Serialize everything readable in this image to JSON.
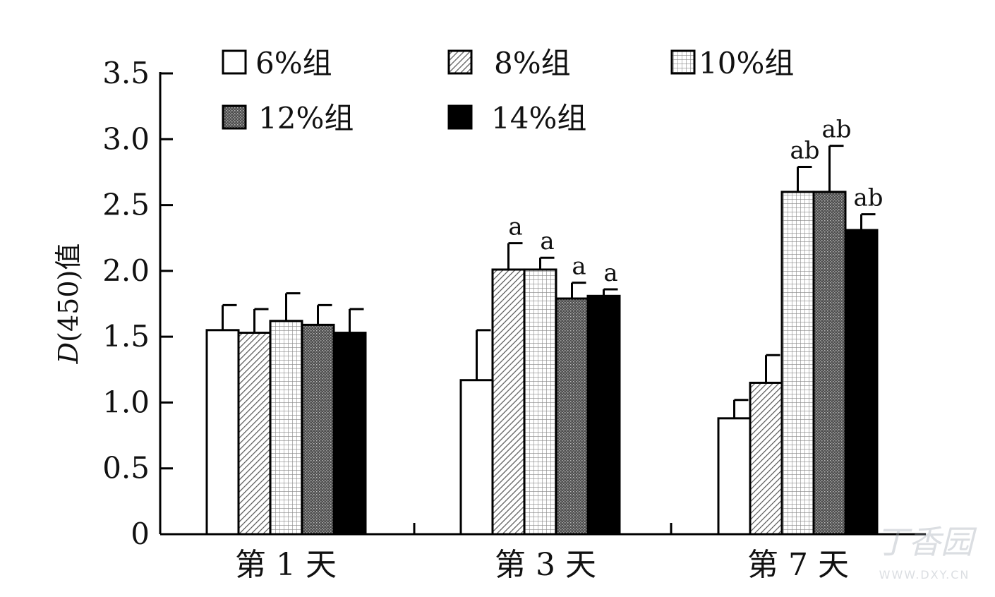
{
  "chart_data": {
    "type": "bar",
    "title": "",
    "xlabel": "",
    "ylabel": "D(450)值",
    "ylabel_italic_part": "D",
    "ylabel_rest": "(450)值",
    "ylim": [
      0,
      3.5
    ],
    "yticks": [
      0,
      0.5,
      1.0,
      1.5,
      2.0,
      2.5,
      3.0,
      3.5
    ],
    "ytick_labels": [
      "0",
      "0.5",
      "1.0",
      "1.5",
      "2.0",
      "2.5",
      "3.0",
      "3.5"
    ],
    "categories": [
      "第 1 天",
      "第 3 天",
      "第 7 天"
    ],
    "series": [
      {
        "name": "6%组",
        "pattern": "white",
        "values": [
          1.55,
          1.17,
          0.88
        ],
        "errors": [
          0.19,
          0.38,
          0.14
        ],
        "sig": [
          "",
          "",
          ""
        ]
      },
      {
        "name": "8%组",
        "pattern": "diagonal-hatch",
        "values": [
          1.53,
          2.01,
          1.15
        ],
        "errors": [
          0.18,
          0.2,
          0.21
        ],
        "sig": [
          "",
          "a",
          ""
        ]
      },
      {
        "name": "10%组",
        "pattern": "grid",
        "values": [
          1.62,
          2.01,
          2.6
        ],
        "errors": [
          0.21,
          0.09,
          0.19
        ],
        "sig": [
          "",
          "a",
          "ab"
        ]
      },
      {
        "name": "12%组",
        "pattern": "dark-dotted",
        "values": [
          1.59,
          1.79,
          2.6
        ],
        "errors": [
          0.15,
          0.12,
          0.35
        ],
        "sig": [
          "",
          "a",
          "ab"
        ]
      },
      {
        "name": "14%组",
        "pattern": "black",
        "values": [
          1.53,
          1.81,
          2.31
        ],
        "errors": [
          0.18,
          0.05,
          0.12
        ],
        "sig": [
          "",
          "a",
          "ab"
        ]
      }
    ],
    "legend_placement": "top (inside plot area, two rows)",
    "grid": false
  },
  "watermark": {
    "text": "丁香园",
    "subtext": "WWW.DXY.CN"
  }
}
